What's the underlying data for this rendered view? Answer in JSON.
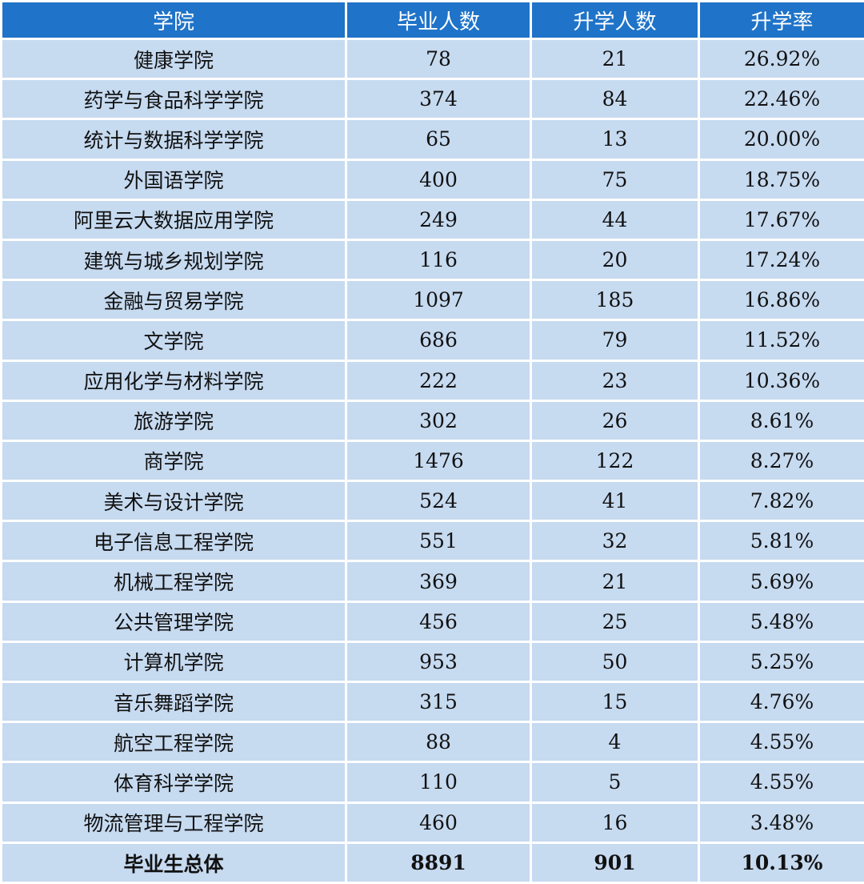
{
  "table": {
    "headers": [
      "学院",
      "毕业人数",
      "升学人数",
      "升学率"
    ],
    "rows": [
      [
        "健康学院",
        "78",
        "21",
        "26.92%"
      ],
      [
        "药学与食品科学学院",
        "374",
        "84",
        "22.46%"
      ],
      [
        "统计与数据科学学院",
        "65",
        "13",
        "20.00%"
      ],
      [
        "外国语学院",
        "400",
        "75",
        "18.75%"
      ],
      [
        "阿里云大数据应用学院",
        "249",
        "44",
        "17.67%"
      ],
      [
        "建筑与城乡规划学院",
        "116",
        "20",
        "17.24%"
      ],
      [
        "金融与贸易学院",
        "1097",
        "185",
        "16.86%"
      ],
      [
        "文学院",
        "686",
        "79",
        "11.52%"
      ],
      [
        "应用化学与材料学院",
        "222",
        "23",
        "10.36%"
      ],
      [
        "旅游学院",
        "302",
        "26",
        "8.61%"
      ],
      [
        "商学院",
        "1476",
        "122",
        "8.27%"
      ],
      [
        "美术与设计学院",
        "524",
        "41",
        "7.82%"
      ],
      [
        "电子信息工程学院",
        "551",
        "32",
        "5.81%"
      ],
      [
        "机械工程学院",
        "369",
        "21",
        "5.69%"
      ],
      [
        "公共管理学院",
        "456",
        "25",
        "5.48%"
      ],
      [
        "计算机学院",
        "953",
        "50",
        "5.25%"
      ],
      [
        "音乐舞蹈学院",
        "315",
        "15",
        "4.76%"
      ],
      [
        "航空工程学院",
        "88",
        "4",
        "4.55%"
      ],
      [
        "体育科学学院",
        "110",
        "5",
        "4.55%"
      ],
      [
        "物流管理与工程学院",
        "460",
        "16",
        "3.48%"
      ]
    ],
    "total": [
      "毕业生总体",
      "8891",
      "901",
      "10.13%"
    ]
  },
  "colors": {
    "header_bg": "#1f73c8",
    "row_bg": "#c6daf0",
    "grid_line": "#ffffff"
  }
}
